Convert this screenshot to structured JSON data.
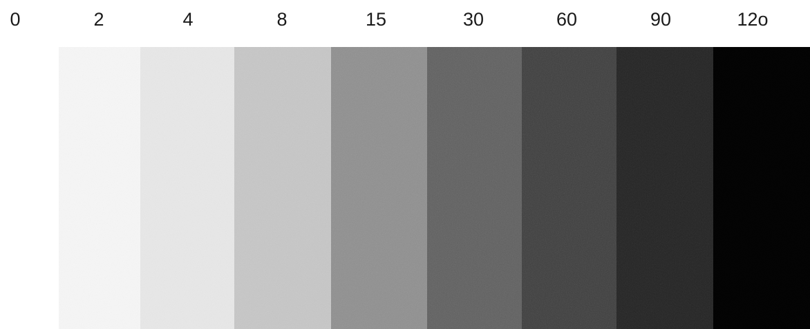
{
  "labels": [
    "0",
    "2",
    "4",
    "8",
    "15",
    "30",
    "60",
    "90",
    "12o"
  ],
  "swatches": [
    {
      "label": "2",
      "color": "#f6f6f6",
      "grain": 0.08
    },
    {
      "label": "4",
      "color": "#e8e8e8",
      "grain": 0.1
    },
    {
      "label": "8",
      "color": "#c7c7c7",
      "grain": 0.14
    },
    {
      "label": "15",
      "color": "#8f8f8f",
      "grain": 0.18
    },
    {
      "label": "30",
      "color": "#5f5f5f",
      "grain": 0.18
    },
    {
      "label": "60",
      "color": "#3e3e3e",
      "grain": 0.16
    },
    {
      "label": "90",
      "color": "#232323",
      "grain": 0.12
    },
    {
      "label": "12o",
      "color": "#020202",
      "grain": 0.02
    }
  ]
}
